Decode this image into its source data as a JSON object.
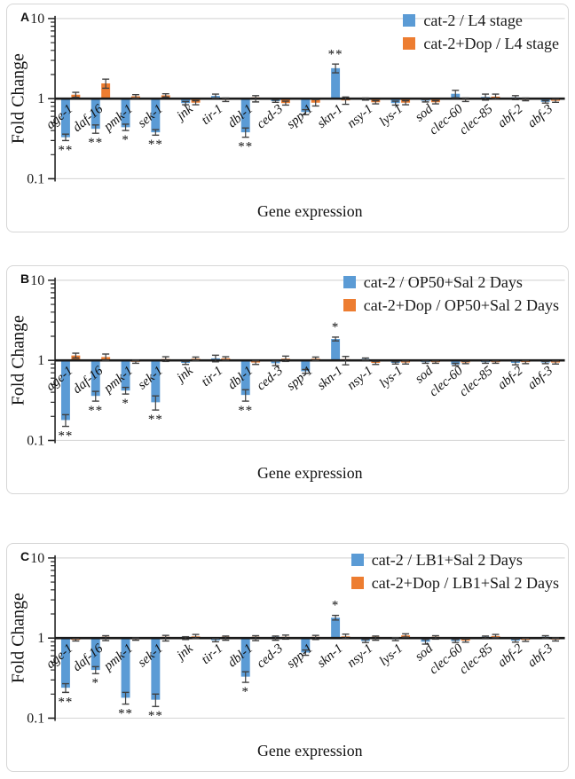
{
  "figure": {
    "colors": {
      "blue": "#5B9BD5",
      "orange": "#ED7D31",
      "baseline": "#1a1a1a",
      "axis": "#262626",
      "grid": "#d9d9d9",
      "error": "#404040",
      "text": "#1a1a1a"
    }
  },
  "chart_data": [
    {
      "type": "bar",
      "panel_label": "A",
      "ylabel": "Fold Change",
      "xlabel": "Gene expression",
      "y_scale": "log",
      "ylim": [
        0.1,
        10
      ],
      "y_ticks": [
        {
          "label": "10",
          "value": 10
        },
        {
          "label": "1",
          "value": 1
        },
        {
          "label": "0.1",
          "value": 0.1
        }
      ],
      "grid": "lines at 10 and 0.1, heavy baseline at 1",
      "legend_position": "top-right",
      "categories": [
        "age-1",
        "daf-16",
        "pmk-1",
        "sek-1",
        "jnk",
        "tir-1",
        "dbl-1",
        "ced-3",
        "spp-1",
        "skn-1",
        "nsy-1",
        "lys-1",
        "sod",
        "clec-60",
        "clec-85",
        "abf-2",
        "abf-3"
      ],
      "series": [
        {
          "name": "cat-2 / L4 stage",
          "color": "#5B9BD5",
          "values": [
            0.33,
            0.42,
            0.44,
            0.38,
            0.88,
            1.08,
            0.38,
            0.93,
            0.68,
            2.4,
            0.99,
            0.88,
            0.94,
            1.15,
            1.05,
            1.03,
            0.91
          ],
          "errors": [
            0.03,
            0.05,
            0.04,
            0.03,
            0.04,
            0.06,
            0.05,
            0.03,
            0.05,
            0.3,
            0.03,
            0.05,
            0.03,
            0.12,
            0.09,
            0.06,
            0.03
          ],
          "sig": [
            "**",
            "**",
            "*",
            "**",
            "",
            "",
            "**",
            "",
            "",
            "**",
            "",
            "",
            "",
            "",
            "",
            "",
            ""
          ]
        },
        {
          "name": "cat-2+Dop / L4 stage",
          "color": "#ED7D31",
          "values": [
            1.12,
            1.55,
            1.07,
            1.1,
            0.89,
            0.97,
            1.0,
            0.88,
            0.89,
            0.95,
            0.9,
            0.89,
            0.9,
            0.97,
            1.06,
            0.98,
            0.94
          ],
          "errors": [
            0.08,
            0.2,
            0.05,
            0.05,
            0.05,
            0.05,
            0.09,
            0.05,
            0.08,
            0.1,
            0.04,
            0.05,
            0.04,
            0.05,
            0.08,
            0.04,
            0.04
          ],
          "sig": [
            "",
            "",
            "",
            "",
            "",
            "",
            "",
            "",
            "",
            "",
            "",
            "",
            "",
            "",
            "",
            "",
            ""
          ]
        }
      ]
    },
    {
      "type": "bar",
      "panel_label": "B",
      "ylabel": "Fold Change",
      "xlabel": "Gene expression",
      "y_scale": "log",
      "ylim": [
        0.1,
        10
      ],
      "y_ticks": [
        {
          "label": "10",
          "value": 10
        },
        {
          "label": "1",
          "value": 1
        },
        {
          "label": "0.1",
          "value": 0.1
        }
      ],
      "grid": "lines at 10 and 0.1, heavy baseline at 1",
      "legend_position": "top-right",
      "categories": [
        "age-1",
        "daf-16",
        "pmk-1",
        "sek-1",
        "jnk",
        "tir-1",
        "dbl-1",
        "ced-3",
        "spp-1",
        "skn-1",
        "nsy-1",
        "lys-1",
        "sod",
        "clec-60",
        "clec-85",
        "abf-2",
        "abf-3"
      ],
      "series": [
        {
          "name": "cat-2 / OP50+Sal 2 Days",
          "color": "#5B9BD5",
          "values": [
            0.18,
            0.36,
            0.42,
            0.3,
            0.93,
            1.06,
            0.37,
            0.92,
            0.73,
            1.85,
            1.04,
            0.93,
            0.95,
            0.89,
            0.95,
            0.93,
            0.94
          ],
          "errors": [
            0.03,
            0.05,
            0.04,
            0.06,
            0.04,
            0.1,
            0.06,
            0.06,
            0.04,
            0.1,
            0.03,
            0.03,
            0.03,
            0.03,
            0.03,
            0.05,
            0.03
          ],
          "sig": [
            "**",
            "**",
            "*",
            "**",
            "",
            "",
            "**",
            "",
            "",
            "*",
            "",
            "",
            "",
            "",
            "",
            "",
            ""
          ]
        },
        {
          "name": "cat-2+Dop / OP50+Sal 2 Days",
          "color": "#ED7D31",
          "values": [
            1.15,
            1.1,
            0.96,
            1.04,
            1.05,
            1.06,
            0.94,
            1.05,
            1.05,
            1.0,
            0.93,
            0.94,
            0.95,
            0.94,
            0.95,
            0.95,
            0.94
          ],
          "errors": [
            0.08,
            0.1,
            0.04,
            0.07,
            0.05,
            0.05,
            0.05,
            0.08,
            0.05,
            0.12,
            0.04,
            0.04,
            0.03,
            0.03,
            0.03,
            0.04,
            0.04
          ],
          "sig": [
            "",
            "",
            "",
            "",
            "",
            "",
            "",
            "",
            "",
            "",
            "",
            "",
            "",
            "",
            "",
            "",
            ""
          ]
        }
      ]
    },
    {
      "type": "bar",
      "panel_label": "C",
      "ylabel": "Fold Change",
      "xlabel": "Gene expression",
      "y_scale": "log",
      "ylim": [
        0.1,
        10
      ],
      "y_ticks": [
        {
          "label": "10",
          "value": 10
        },
        {
          "label": "1",
          "value": 1
        },
        {
          "label": "0.1",
          "value": 0.1
        }
      ],
      "grid": "lines at 10 and 0.1, heavy baseline at 1",
      "legend_position": "top-right",
      "categories": [
        "age-1",
        "daf-16",
        "pmk-1",
        "sek-1",
        "jnk",
        "tir-1",
        "dbl-1",
        "ced-3",
        "spp-1",
        "skn-1",
        "nsy-1",
        "lys-1",
        "sod",
        "clec-60",
        "clec-85",
        "abf-2",
        "abf-3"
      ],
      "series": [
        {
          "name": "cat-2 / LB1+Sal 2 Days",
          "color": "#5B9BD5",
          "values": [
            0.24,
            0.4,
            0.18,
            0.17,
            1.0,
            0.94,
            0.33,
            1.0,
            0.66,
            1.8,
            0.92,
            0.97,
            0.9,
            0.92,
            1.02,
            0.93,
            1.03
          ],
          "errors": [
            0.03,
            0.04,
            0.03,
            0.03,
            0.04,
            0.04,
            0.05,
            0.06,
            0.05,
            0.12,
            0.04,
            0.04,
            0.06,
            0.04,
            0.04,
            0.04,
            0.04
          ],
          "sig": [
            "**",
            "*",
            "**",
            "**",
            "",
            "",
            "*",
            "",
            "",
            "*",
            "",
            "",
            "",
            "",
            "",
            "",
            ""
          ]
        },
        {
          "name": "cat-2+Dop / LB1+Sal 2 Days",
          "color": "#ED7D31",
          "values": [
            0.95,
            1.0,
            0.97,
            1.0,
            1.05,
            1.0,
            1.0,
            1.03,
            1.02,
            1.05,
            1.0,
            1.08,
            1.02,
            0.93,
            1.06,
            0.95,
            0.96
          ],
          "errors": [
            0.03,
            0.07,
            0.03,
            0.08,
            0.06,
            0.06,
            0.07,
            0.06,
            0.06,
            0.07,
            0.06,
            0.05,
            0.05,
            0.04,
            0.05,
            0.04,
            0.04
          ],
          "sig": [
            "",
            "",
            "",
            "",
            "",
            "",
            "",
            "",
            "",
            "",
            "",
            "",
            "",
            "",
            "",
            "",
            ""
          ]
        }
      ]
    }
  ]
}
